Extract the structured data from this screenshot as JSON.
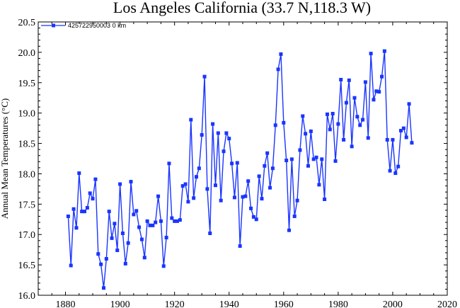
{
  "chart_data": {
    "type": "line",
    "title": "Los Angeles California (33.7 N,118.3 W)",
    "ylabel": "Annual Mean Temperatures (°C)",
    "xlabel": "",
    "xlim": [
      1870,
      2020
    ],
    "ylim": [
      16.0,
      20.5
    ],
    "xticks": [
      1880,
      1900,
      1920,
      1940,
      1960,
      1980,
      2000,
      2020
    ],
    "yticks": [
      16.0,
      16.5,
      17.0,
      17.5,
      18.0,
      18.5,
      19.0,
      19.5,
      20.0,
      20.5
    ],
    "grid": false,
    "legend_position": "top-left",
    "color": "#1a35ff",
    "series": [
      {
        "name": "425722950003  0 km",
        "marker": "square",
        "x": [
          1881,
          1882,
          1883,
          1884,
          1885,
          1886,
          1887,
          1888,
          1889,
          1890,
          1891,
          1892,
          1893,
          1894,
          1895,
          1896,
          1897,
          1898,
          1899,
          1900,
          1901,
          1902,
          1903,
          1904,
          1905,
          1906,
          1907,
          1908,
          1909,
          1910,
          1911,
          1912,
          1913,
          1914,
          1915,
          1916,
          1917,
          1918,
          1919,
          1920,
          1921,
          1922,
          1923,
          1924,
          1925,
          1926,
          1927,
          1928,
          1929,
          1930,
          1931,
          1932,
          1933,
          1934,
          1935,
          1936,
          1937,
          1938,
          1939,
          1940,
          1941,
          1942,
          1943,
          1944,
          1945,
          1946,
          1947,
          1948,
          1949,
          1950,
          1951,
          1952,
          1953,
          1954,
          1955,
          1956,
          1957,
          1958,
          1959,
          1960,
          1961,
          1962,
          1963,
          1964,
          1965,
          1966,
          1967,
          1968,
          1969,
          1970,
          1971,
          1972,
          1973,
          1974,
          1975,
          1976,
          1977,
          1978,
          1979,
          1980,
          1981,
          1982,
          1983,
          1984,
          1985,
          1986,
          1987,
          1988,
          1989,
          1990,
          1991,
          1992,
          1993,
          1994,
          1995,
          1996,
          1997,
          1998,
          1999,
          2000,
          2001,
          2002,
          2003,
          2004,
          2005,
          2006,
          2007
        ],
        "y": [
          17.3,
          16.49,
          17.42,
          17.11,
          18.01,
          17.38,
          17.38,
          17.44,
          17.68,
          17.59,
          17.91,
          16.68,
          16.51,
          16.12,
          16.6,
          17.38,
          16.94,
          17.18,
          16.74,
          17.83,
          17.02,
          16.52,
          16.86,
          17.87,
          17.33,
          17.39,
          17.12,
          16.92,
          16.62,
          17.22,
          17.15,
          17.15,
          17.2,
          17.63,
          17.22,
          16.48,
          16.95,
          18.17,
          17.27,
          17.22,
          17.22,
          17.24,
          17.8,
          17.83,
          17.54,
          18.89,
          17.6,
          17.95,
          18.09,
          18.64,
          19.6,
          17.75,
          17.02,
          18.82,
          17.81,
          18.67,
          17.56,
          18.37,
          18.67,
          18.58,
          18.17,
          17.61,
          18.18,
          16.81,
          17.62,
          17.63,
          17.88,
          17.43,
          17.29,
          17.25,
          17.96,
          17.59,
          18.13,
          18.34,
          17.77,
          18.09,
          18.8,
          19.72,
          19.97,
          18.84,
          18.22,
          17.07,
          18.24,
          17.3,
          17.56,
          18.39,
          18.95,
          18.66,
          18.13,
          18.7,
          18.24,
          18.27,
          17.82,
          18.24,
          17.58,
          18.98,
          18.73,
          18.99,
          18.21,
          18.82,
          19.55,
          18.56,
          19.17,
          19.54,
          18.45,
          19.25,
          18.94,
          18.8,
          18.89,
          19.51,
          18.59,
          19.98,
          19.22,
          19.36,
          19.35,
          19.6,
          20.02,
          18.56,
          18.05,
          18.56,
          18.01,
          18.12,
          18.71,
          18.75,
          18.6,
          19.15,
          18.51
        ]
      }
    ]
  }
}
